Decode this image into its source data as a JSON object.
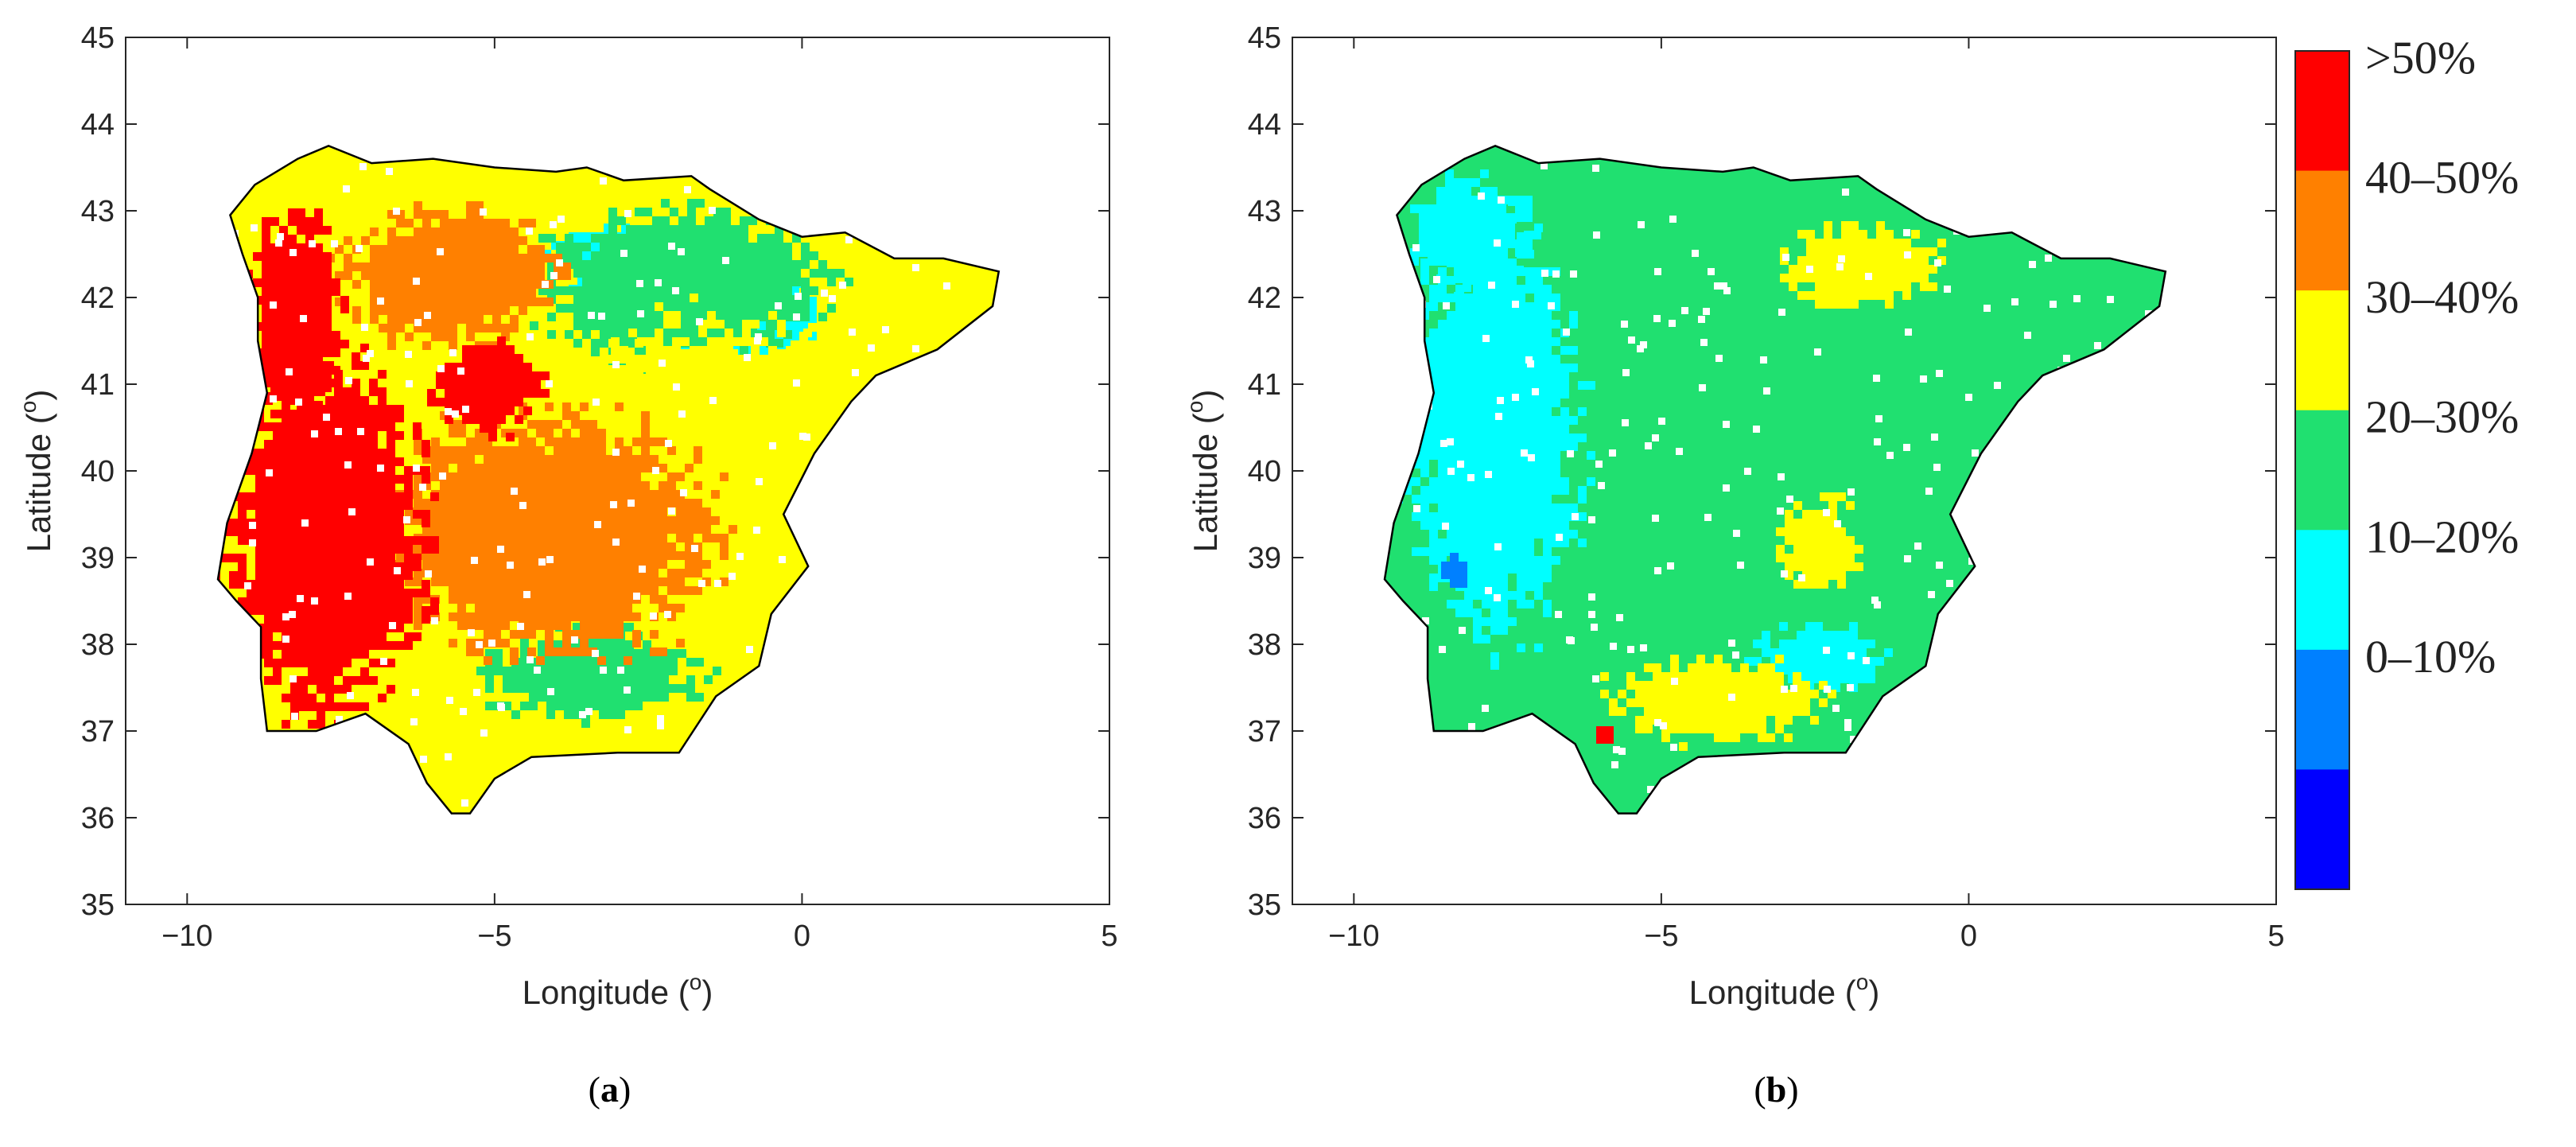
{
  "figure": {
    "panels": [
      {
        "id": "a",
        "label_prefix": "(",
        "label_letter": "a",
        "label_suffix": ")",
        "xlabel": "Longitude (",
        "ylabel": "Latitude (",
        "degree_mark": "o",
        "close_paren": ")",
        "xlim": [
          -11,
          5
        ],
        "ylim": [
          35,
          45
        ],
        "xticks": [
          -10,
          -5,
          0,
          5
        ],
        "yticks": [
          35,
          36,
          37,
          38,
          39,
          40,
          41,
          42,
          43,
          44,
          45
        ],
        "xtick_labels": [
          "−10",
          "−5",
          "0",
          "5"
        ],
        "ytick_labels": [
          "35",
          "36",
          "37",
          "38",
          "39",
          "40",
          "41",
          "42",
          "43",
          "44",
          "45"
        ],
        "map_regions": [
          {
            "class": "10-20%",
            "color": "#00ffff",
            "center": [
              -1.2,
              41.9
            ],
            "radius": [
              1.3,
              0.55
            ]
          },
          {
            "class": "10-20%",
            "color": "#00ffff",
            "center": [
              -3.2,
              42.5
            ],
            "radius": [
              0.9,
              0.35
            ]
          },
          {
            "class": "20-30%",
            "color": "#20e070",
            "center": [
              -3.5,
              37.7
            ],
            "radius": [
              1.6,
              0.5
            ]
          },
          {
            "class": "20-30%",
            "color": "#20e070",
            "center": [
              -2.0,
              42.2
            ],
            "radius": [
              2.2,
              0.8
            ]
          },
          {
            "class": "30-40%",
            "color": "#ffff00",
            "center": [
              -1.5,
              40.2
            ],
            "radius": [
              2.0,
              1.5
            ]
          },
          {
            "class": "40-50%",
            "color": "#ff8000",
            "center": [
              -4.2,
              39.3
            ],
            "radius": [
              2.5,
              1.3
            ]
          },
          {
            "class": "40-50%",
            "color": "#ff8000",
            "center": [
              -5.8,
              42.3
            ],
            "radius": [
              1.6,
              0.7
            ]
          },
          {
            "class": ">50%",
            "color": "#ff0000",
            "center": [
              -7.8,
              39.3
            ],
            "radius": [
              1.5,
              1.9
            ]
          },
          {
            "class": ">50%",
            "color": "#ff0000",
            "center": [
              -8.3,
              41.8
            ],
            "radius": [
              0.7,
              1.1
            ]
          },
          {
            "class": ">50%",
            "color": "#ff0000",
            "center": [
              -5.2,
              41.0
            ],
            "radius": [
              0.8,
              0.5
            ]
          }
        ],
        "base_color": "#ffff00"
      },
      {
        "id": "b",
        "label_prefix": "(",
        "label_letter": "b",
        "label_suffix": ")",
        "xlabel": "Longitude (",
        "ylabel": "Latitude (",
        "degree_mark": "o",
        "close_paren": ")",
        "xlim": [
          -11,
          5
        ],
        "ylim": [
          35,
          45
        ],
        "xticks": [
          -10,
          -5,
          0,
          5
        ],
        "yticks": [
          35,
          36,
          37,
          38,
          39,
          40,
          41,
          42,
          43,
          44,
          45
        ],
        "xtick_labels": [
          "−10",
          "−5",
          "0",
          "5"
        ],
        "ytick_labels": [
          "35",
          "36",
          "37",
          "38",
          "39",
          "40",
          "41",
          "42",
          "43",
          "44",
          "45"
        ],
        "map_regions": [
          {
            "class": "10-20%",
            "color": "#00ffff",
            "center": [
              -7.8,
              40.5
            ],
            "radius": [
              1.3,
              2.2
            ]
          },
          {
            "class": "10-20%",
            "color": "#00ffff",
            "center": [
              -8.2,
              42.8
            ],
            "radius": [
              0.9,
              0.6
            ]
          },
          {
            "class": "10-20%",
            "color": "#00ffff",
            "center": [
              -2.5,
              37.9
            ],
            "radius": [
              1.0,
              0.35
            ]
          },
          {
            "class": "0-10%",
            "color": "#0080ff",
            "center": [
              -8.4,
              38.9
            ],
            "radius": [
              0.25,
              0.2
            ]
          },
          {
            "class": "30-40%",
            "color": "#ffff00",
            "center": [
              -4.2,
              37.4
            ],
            "radius": [
              1.6,
              0.45
            ]
          },
          {
            "class": "30-40%",
            "color": "#ffff00",
            "center": [
              -1.8,
              42.4
            ],
            "radius": [
              1.2,
              0.45
            ]
          },
          {
            "class": "30-40%",
            "color": "#ffff00",
            "center": [
              -2.5,
              39.2
            ],
            "radius": [
              0.6,
              0.5
            ]
          },
          {
            "class": ">50%",
            "color": "#ff0000",
            "center": [
              -6.0,
              37.0
            ],
            "radius": [
              0.15,
              0.12
            ]
          }
        ],
        "base_color": "#20e070"
      }
    ],
    "colorbar": {
      "classes": [
        {
          "label": ">50%",
          "color": "#ff0000"
        },
        {
          "label": "40–50%",
          "color": "#ff8000"
        },
        {
          "label": "30–40%",
          "color": "#ffff00"
        },
        {
          "label": "20–30%",
          "color": "#20e070"
        },
        {
          "label": "10–20%",
          "color": "#00ffff"
        },
        {
          "label": "0–10%",
          "color": "#0080ff"
        },
        {
          "label": "",
          "color": "#0000ff"
        }
      ]
    }
  }
}
